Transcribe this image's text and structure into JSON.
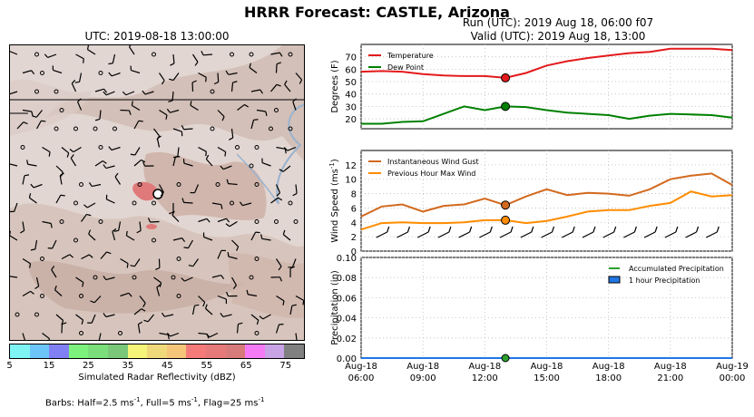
{
  "title": "HRRR Forecast: CASTLE, Arizona",
  "map": {
    "title": "UTC: 2019-08-18 13:00:00",
    "colorbar_label": "Simulated Radar Reflectivity (dBZ)",
    "colorbar_ticks": [
      "5",
      "15",
      "25",
      "35",
      "45",
      "55",
      "65",
      "75"
    ],
    "colorbar_colors": [
      "#7ff4f4",
      "#6cc5f8",
      "#8080f4",
      "#7cf27c",
      "#7ade7a",
      "#7ac77a",
      "#f5f57a",
      "#f0d97a",
      "#f5c67a",
      "#f57a7a",
      "#e67a7a",
      "#d67a7a",
      "#f57af5",
      "#c8a3e6",
      "#808080"
    ],
    "barbs_note": "Barbs: Half=2.5 ms",
    "barbs_note_sup": "-1",
    "barbs_note_2": ", Full=5 ms",
    "barbs_note_3": ", Flag=25 ms"
  },
  "header": {
    "run": "Run (UTC): 2019 Aug 18, 06:00 f07",
    "valid": "Valid (UTC): 2019 Aug 18, 13:00"
  },
  "chart_data": [
    {
      "type": "line",
      "ylabel": "Degrees (F)",
      "ylim": [
        12,
        80
      ],
      "yticks": [
        20,
        30,
        40,
        50,
        60,
        70
      ],
      "x": [
        "06:00",
        "07:00",
        "08:00",
        "09:00",
        "10:00",
        "11:00",
        "12:00",
        "13:00",
        "14:00",
        "15:00",
        "16:00",
        "17:00",
        "18:00",
        "19:00",
        "20:00",
        "21:00",
        "22:00",
        "23:00",
        "00:00"
      ],
      "series": [
        {
          "name": "Temperature",
          "color": "#e31a1c",
          "values": [
            58,
            58.5,
            58,
            56,
            55,
            54.5,
            54.5,
            53,
            57,
            63,
            66.5,
            69,
            71,
            73,
            74,
            76.5,
            76.5,
            76.5,
            75.5
          ]
        },
        {
          "name": "Dew Point",
          "color": "#008000",
          "values": [
            16,
            16,
            17.5,
            18,
            24,
            30,
            27,
            30,
            29.5,
            27,
            25,
            24,
            23,
            20,
            22.5,
            24,
            23.5,
            23,
            21
          ]
        }
      ],
      "highlight_index": 7,
      "legend": "top-left"
    },
    {
      "type": "line",
      "ylabel": "Wind Speed (ms",
      "ylabel_sup": "-1",
      "ylim": [
        0,
        14
      ],
      "yticks": [
        0,
        2,
        4,
        6,
        8,
        10,
        12
      ],
      "x": [
        "06:00",
        "07:00",
        "08:00",
        "09:00",
        "10:00",
        "11:00",
        "12:00",
        "13:00",
        "14:00",
        "15:00",
        "16:00",
        "17:00",
        "18:00",
        "19:00",
        "20:00",
        "21:00",
        "22:00",
        "23:00",
        "00:00"
      ],
      "series": [
        {
          "name": "Instantaneous Wind Gust",
          "color": "#d2691e",
          "values": [
            4.8,
            6.2,
            6.5,
            5.5,
            6.3,
            6.5,
            7.3,
            6.4,
            7.6,
            8.6,
            7.8,
            8.1,
            8.0,
            7.7,
            8.6,
            10.0,
            10.5,
            10.8,
            9.2
          ]
        },
        {
          "name": "Previous Hour Max Wind",
          "color": "#ff8c00",
          "values": [
            3.0,
            3.9,
            4.0,
            3.9,
            3.9,
            4.0,
            4.3,
            4.3,
            3.9,
            4.2,
            4.8,
            5.5,
            5.7,
            5.7,
            6.3,
            6.7,
            8.3,
            7.6,
            7.8
          ]
        }
      ],
      "highlight_index": 7,
      "legend": "top-left"
    },
    {
      "type": "area",
      "ylabel": "Precipitation (in)",
      "ylim": [
        0,
        0.1
      ],
      "yticks": [
        "0.00",
        "0.02",
        "0.04",
        "0.06",
        "0.08",
        "0.10"
      ],
      "x": [
        "06:00",
        "07:00",
        "08:00",
        "09:00",
        "10:00",
        "11:00",
        "12:00",
        "13:00",
        "14:00",
        "15:00",
        "16:00",
        "17:00",
        "18:00",
        "19:00",
        "20:00",
        "21:00",
        "22:00",
        "23:00",
        "00:00"
      ],
      "series": [
        {
          "name": "Accumulated Precipitation",
          "color": "#2ca02c",
          "values": [
            0,
            0,
            0,
            0,
            0,
            0,
            0,
            0,
            0,
            0,
            0,
            0,
            0,
            0,
            0,
            0,
            0,
            0,
            0
          ]
        },
        {
          "name": "1 hour Precipitation",
          "color": "#1f77e4",
          "values": [
            0,
            0,
            0,
            0,
            0,
            0,
            0,
            0,
            0,
            0,
            0,
            0,
            0,
            0,
            0,
            0,
            0,
            0,
            0
          ]
        }
      ],
      "highlight_index": 7,
      "legend": "top-right",
      "xtick_labels": [
        {
          "line1": "Aug-18",
          "line2": "06:00"
        },
        {
          "line1": "Aug-18",
          "line2": "09:00"
        },
        {
          "line1": "Aug-18",
          "line2": "12:00"
        },
        {
          "line1": "Aug-18",
          "line2": "15:00"
        },
        {
          "line1": "Aug-18",
          "line2": "18:00"
        },
        {
          "line1": "Aug-18",
          "line2": "21:00"
        },
        {
          "line1": "Aug-19",
          "line2": "00:00"
        }
      ]
    }
  ]
}
